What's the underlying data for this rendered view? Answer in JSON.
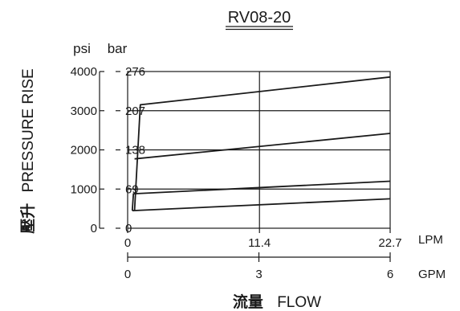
{
  "chart_data": {
    "type": "line",
    "title": "RV08-20",
    "xlabel_cjk": "流量",
    "xlabel": "FLOW",
    "ylabel_cjk": "壓升",
    "ylabel": "PRESSURE RISE",
    "y_units": {
      "primary": "psi",
      "secondary": "bar"
    },
    "x_units": {
      "primary": "LPM",
      "secondary": "GPM"
    },
    "ylim_psi": [
      0,
      4000
    ],
    "xlim_lpm": [
      0,
      22.7
    ],
    "psi_ticks": [
      "0",
      "1000",
      "2000",
      "3000",
      "4000"
    ],
    "psi_tick_values": [
      0,
      1000,
      2000,
      3000,
      4000
    ],
    "bar_ticks": [
      "0",
      "69",
      "138",
      "207",
      "276"
    ],
    "lpm_ticks": [
      "0",
      "11.4",
      "22.7"
    ],
    "lpm_tick_values": [
      0,
      11.4,
      22.7
    ],
    "gpm_ticks": [
      "0",
      "3",
      "6"
    ],
    "gpm_tick_values": [
      0,
      3,
      6
    ],
    "grid": {
      "horizontal": true,
      "vertical_at_lpm": [
        11.4
      ]
    },
    "series": [
      {
        "x": [
          0.4,
          22.7
        ],
        "y": [
          450,
          750
        ]
      },
      {
        "x": [
          0.4,
          0.5,
          22.7
        ],
        "y": [
          450,
          880,
          1200
        ]
      },
      {
        "x": [
          0.6,
          22.7
        ],
        "y": [
          1770,
          2420
        ]
      },
      {
        "x": [
          0.6,
          1.1,
          22.7
        ],
        "y": [
          450,
          3150,
          3860
        ]
      }
    ]
  }
}
